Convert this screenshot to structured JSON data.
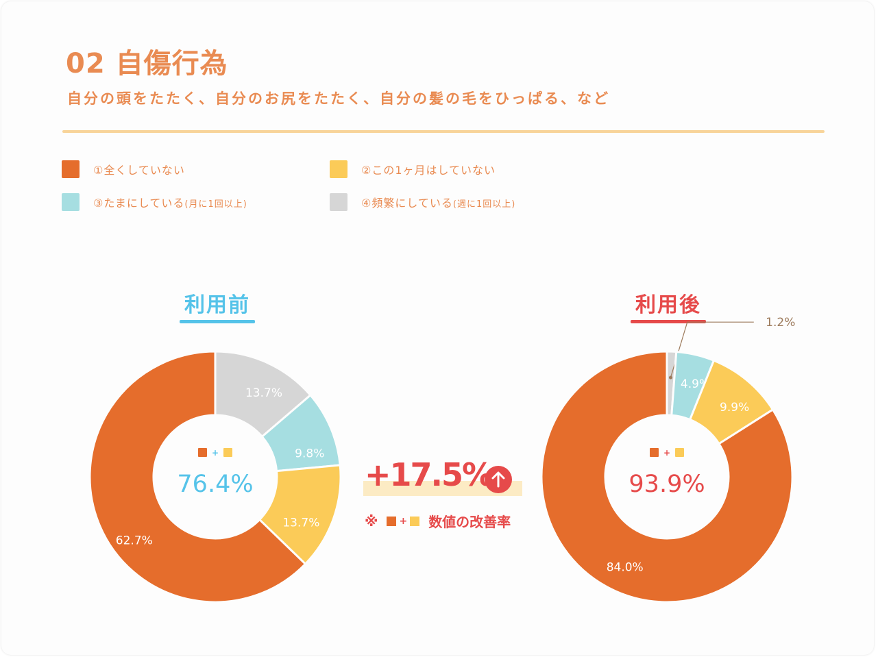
{
  "header": {
    "title": "02 自傷行為",
    "subtitle": "自分の頭をたたく、自分のお尻をたたく、自分の髪の毛をひっぱる、など"
  },
  "colors": {
    "orange": "#E56D2C",
    "yellow": "#FBCB58",
    "cyan": "#A6DEE1",
    "gray": "#D6D6D6",
    "before_accent": "#55C3E9",
    "after_accent": "#E64A4A",
    "heading": "#E98B52"
  },
  "legend": [
    {
      "marker": "①",
      "label": "全くしていない",
      "note": "",
      "color": "#E56D2C"
    },
    {
      "marker": "②",
      "label": "この1ヶ月はしていない",
      "note": "",
      "color": "#FBCB58"
    },
    {
      "marker": "③",
      "label": "たまにしている",
      "note": "(月に1回以上)",
      "color": "#A6DEE1"
    },
    {
      "marker": "④",
      "label": "頻繁にしている",
      "note": "(週に1回以上)",
      "color": "#D6D6D6"
    }
  ],
  "improvement": {
    "value": "+17.5%",
    "note_prefix": "※",
    "note_plus": "+",
    "note_text": "数値の改善率",
    "icon": "arrow-up-circle-icon"
  },
  "chart_data": [
    {
      "type": "pie",
      "title": "利用前",
      "categories": [
        "①全くしていない",
        "②この1ヶ月はしていない",
        "③たまにしている(月に1回以上)",
        "④頻繁にしている(週に1回以上)"
      ],
      "values": [
        62.7,
        13.7,
        9.8,
        13.7
      ],
      "labels": [
        "62.7%",
        "13.7%",
        "9.8%",
        "13.7%"
      ],
      "center_value": "76.4%",
      "center_plus": "+",
      "unit": "%"
    },
    {
      "type": "pie",
      "title": "利用後",
      "categories": [
        "①全くしていない",
        "②この1ヶ月はしていない",
        "③たまにしている(月に1回以上)",
        "④頻繁にしている(週に1回以上)"
      ],
      "values": [
        84.0,
        9.9,
        4.9,
        1.2
      ],
      "labels": [
        "84.0%",
        "9.9%",
        "4.9%",
        "1.2%"
      ],
      "center_value": "93.9%",
      "center_plus": "+",
      "unit": "%"
    }
  ]
}
